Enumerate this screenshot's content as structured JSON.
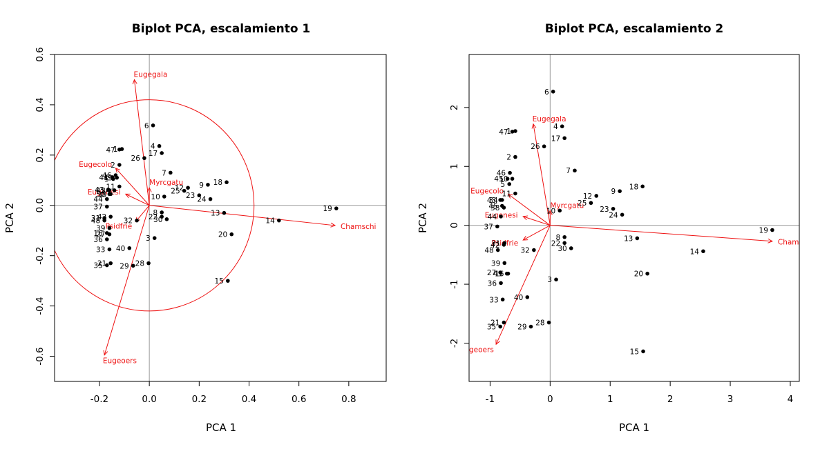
{
  "chart_data": [
    {
      "type": "scatter",
      "title": "Biplot PCA, escalamiento 1",
      "xlabel": "PCA  1",
      "ylabel": "PCA  2",
      "xlim": [
        -0.38,
        0.95
      ],
      "ylim": [
        -0.7,
        0.6
      ],
      "xticks": [
        "-0.2",
        "0.0",
        "0.2",
        "0.4",
        "0.6",
        "0.8"
      ],
      "yticks": [
        "-0.6",
        "-0.4",
        "-0.2",
        "0.0",
        "0.2",
        "0.4",
        "0.6"
      ],
      "circle_radius": 0.42,
      "sites": [
        {
          "label": "1",
          "x": -0.11,
          "y": 0.224
        },
        {
          "label": "2",
          "x": -0.12,
          "y": 0.161
        },
        {
          "label": "3",
          "x": 0.021,
          "y": -0.13
        },
        {
          "label": "4",
          "x": 0.04,
          "y": 0.236
        },
        {
          "label": "5",
          "x": -0.145,
          "y": 0.105
        },
        {
          "label": "6",
          "x": 0.015,
          "y": 0.318
        },
        {
          "label": "7",
          "x": 0.085,
          "y": 0.13
        },
        {
          "label": "8",
          "x": 0.05,
          "y": -0.028
        },
        {
          "label": "9",
          "x": 0.235,
          "y": 0.082
        },
        {
          "label": "10",
          "x": 0.06,
          "y": 0.035
        },
        {
          "label": "11",
          "x": -0.12,
          "y": 0.075
        },
        {
          "label": "12",
          "x": 0.155,
          "y": 0.07
        },
        {
          "label": "13",
          "x": 0.3,
          "y": -0.03
        },
        {
          "label": "14",
          "x": 0.52,
          "y": -0.06
        },
        {
          "label": "15",
          "x": 0.315,
          "y": -0.3
        },
        {
          "label": "16",
          "x": -0.17,
          "y": -0.11
        },
        {
          "label": "17",
          "x": 0.05,
          "y": 0.208
        },
        {
          "label": "18",
          "x": 0.31,
          "y": 0.092
        },
        {
          "label": "19",
          "x": 0.75,
          "y": -0.012
        },
        {
          "label": "20",
          "x": 0.33,
          "y": -0.115
        },
        {
          "label": "21",
          "x": -0.155,
          "y": -0.23
        },
        {
          "label": "22",
          "x": 0.05,
          "y": -0.045
        },
        {
          "label": "23",
          "x": 0.2,
          "y": 0.04
        },
        {
          "label": "24",
          "x": 0.245,
          "y": 0.025
        },
        {
          "label": "25",
          "x": 0.14,
          "y": 0.058
        },
        {
          "label": "26",
          "x": -0.02,
          "y": 0.188
        },
        {
          "label": "27",
          "x": -0.16,
          "y": -0.115
        },
        {
          "label": "28",
          "x": -0.003,
          "y": -0.23
        },
        {
          "label": "29",
          "x": -0.065,
          "y": -0.24
        },
        {
          "label": "30",
          "x": 0.07,
          "y": -0.055
        },
        {
          "label": "31",
          "x": -0.18,
          "y": -0.05
        },
        {
          "label": "32",
          "x": -0.05,
          "y": -0.06
        },
        {
          "label": "33",
          "x": -0.16,
          "y": -0.175
        },
        {
          "label": "34",
          "x": -0.14,
          "y": 0.06
        },
        {
          "label": "35",
          "x": -0.17,
          "y": -0.238
        },
        {
          "label": "36",
          "x": -0.17,
          "y": -0.135
        },
        {
          "label": "37",
          "x": -0.17,
          "y": -0.005
        },
        {
          "label": "38",
          "x": -0.155,
          "y": 0.045
        },
        {
          "label": "39",
          "x": -0.16,
          "y": -0.09
        },
        {
          "label": "40",
          "x": -0.08,
          "y": -0.17
        },
        {
          "label": "41",
          "x": -0.148,
          "y": 0.112
        },
        {
          "label": "42",
          "x": -0.155,
          "y": -0.045
        },
        {
          "label": "43",
          "x": -0.165,
          "y": 0.063
        },
        {
          "label": "44",
          "x": -0.17,
          "y": 0.025
        },
        {
          "label": "45",
          "x": -0.16,
          "y": 0.06
        },
        {
          "label": "46",
          "x": -0.135,
          "y": 0.12
        },
        {
          "label": "47",
          "x": -0.12,
          "y": 0.222
        },
        {
          "label": "48",
          "x": -0.18,
          "y": -0.06
        },
        {
          "label": "49",
          "x": -0.13,
          "y": 0.11
        },
        {
          "label": "50",
          "x": -0.16,
          "y": 0.045
        }
      ],
      "species": [
        {
          "name": "Eugegala",
          "x": -0.06,
          "y": 0.5
        },
        {
          "name": "Eugecolo",
          "x": -0.135,
          "y": 0.148
        },
        {
          "name": "Eugenesi",
          "x": -0.095,
          "y": 0.045
        },
        {
          "name": "Myrcgatu",
          "x": 0.0,
          "y": 0.07
        },
        {
          "name": "Psidfrie",
          "x": -0.055,
          "y": -0.065
        },
        {
          "name": "Chamschi",
          "x": 0.745,
          "y": -0.08
        },
        {
          "name": "Eugeoers",
          "x": -0.18,
          "y": -0.595
        }
      ]
    },
    {
      "type": "scatter",
      "title": "Biplot PCA, escalamiento 2",
      "xlabel": "PCA  1",
      "ylabel": "PCA  2",
      "xlim": [
        -1.35,
        4.15
      ],
      "ylim": [
        -2.65,
        2.9
      ],
      "xticks": [
        "-1",
        "0",
        "1",
        "2",
        "3",
        "4"
      ],
      "yticks": [
        "-2",
        "-1",
        "0",
        "1",
        "2"
      ],
      "sites": [
        {
          "label": "1",
          "x": -0.58,
          "y": 1.6
        },
        {
          "label": "2",
          "x": -0.58,
          "y": 1.16
        },
        {
          "label": "3",
          "x": 0.1,
          "y": -0.92
        },
        {
          "label": "4",
          "x": 0.2,
          "y": 1.68
        },
        {
          "label": "5",
          "x": -0.68,
          "y": 0.7
        },
        {
          "label": "6",
          "x": 0.05,
          "y": 2.27
        },
        {
          "label": "7",
          "x": 0.41,
          "y": 0.93
        },
        {
          "label": "8",
          "x": 0.24,
          "y": -0.2
        },
        {
          "label": "9",
          "x": 1.16,
          "y": 0.58
        },
        {
          "label": "10",
          "x": 0.16,
          "y": 0.25
        },
        {
          "label": "11",
          "x": -0.58,
          "y": 0.54
        },
        {
          "label": "12",
          "x": 0.77,
          "y": 0.5
        },
        {
          "label": "13",
          "x": 1.45,
          "y": -0.22
        },
        {
          "label": "14",
          "x": 2.55,
          "y": -0.44
        },
        {
          "label": "15",
          "x": 1.55,
          "y": -2.14
        },
        {
          "label": "16",
          "x": -0.7,
          "y": -0.82
        },
        {
          "label": "17",
          "x": 0.24,
          "y": 1.48
        },
        {
          "label": "18",
          "x": 1.54,
          "y": 0.66
        },
        {
          "label": "19",
          "x": 3.7,
          "y": -0.08
        },
        {
          "label": "20",
          "x": 1.62,
          "y": -0.82
        },
        {
          "label": "21",
          "x": -0.77,
          "y": -1.65
        },
        {
          "label": "22",
          "x": 0.24,
          "y": -0.3
        },
        {
          "label": "23",
          "x": 1.05,
          "y": 0.28
        },
        {
          "label": "24",
          "x": 1.2,
          "y": 0.18
        },
        {
          "label": "25",
          "x": 0.68,
          "y": 0.38
        },
        {
          "label": "26",
          "x": -0.1,
          "y": 1.34
        },
        {
          "label": "27",
          "x": -0.83,
          "y": -0.8
        },
        {
          "label": "28",
          "x": -0.02,
          "y": -1.65
        },
        {
          "label": "29",
          "x": -0.32,
          "y": -1.72
        },
        {
          "label": "30",
          "x": 0.35,
          "y": -0.39
        },
        {
          "label": "31",
          "x": -0.76,
          "y": -0.3
        },
        {
          "label": "32",
          "x": -0.27,
          "y": -0.42
        },
        {
          "label": "33",
          "x": -0.79,
          "y": -1.26
        },
        {
          "label": "34",
          "x": -0.8,
          "y": 0.43
        },
        {
          "label": "35",
          "x": -0.83,
          "y": -1.72
        },
        {
          "label": "36",
          "x": -0.82,
          "y": -0.98
        },
        {
          "label": "37",
          "x": -0.88,
          "y": -0.02
        },
        {
          "label": "38",
          "x": -0.77,
          "y": 0.3
        },
        {
          "label": "39",
          "x": -0.76,
          "y": -0.64
        },
        {
          "label": "40",
          "x": -0.38,
          "y": -1.22
        },
        {
          "label": "41",
          "x": -0.71,
          "y": 0.79
        },
        {
          "label": "42",
          "x": -0.77,
          "y": -0.33
        },
        {
          "label": "43",
          "x": -0.83,
          "y": 0.43
        },
        {
          "label": "44",
          "x": -0.82,
          "y": 0.15
        },
        {
          "label": "45",
          "x": -0.8,
          "y": 0.33
        },
        {
          "label": "46",
          "x": -0.67,
          "y": 0.89
        },
        {
          "label": "47",
          "x": -0.63,
          "y": 1.59
        },
        {
          "label": "48",
          "x": -0.87,
          "y": -0.42
        },
        {
          "label": "49",
          "x": -0.72,
          "y": -0.82
        },
        {
          "label": "50",
          "x": -0.63,
          "y": 0.79
        }
      ],
      "species": [
        {
          "name": "Eugegala",
          "x": -0.28,
          "y": 1.72
        },
        {
          "name": "Eugecolo",
          "x": -0.7,
          "y": 0.53
        },
        {
          "name": "Eugenesi",
          "x": -0.45,
          "y": 0.15
        },
        {
          "name": "Myrcgatu",
          "x": 0.0,
          "y": 0.25
        },
        {
          "name": "Psidfrie",
          "x": -0.45,
          "y": -0.25
        },
        {
          "name": "Chamschi",
          "x": 3.7,
          "y": -0.27
        },
        {
          "name": "Eugeoers",
          "x": -0.9,
          "y": -2.02
        }
      ]
    }
  ],
  "colors": {
    "points": "#000000",
    "species_arrows": "#ee1111",
    "circle": "#ee1111",
    "zero_lines": "#999999",
    "frame": "#000000"
  }
}
